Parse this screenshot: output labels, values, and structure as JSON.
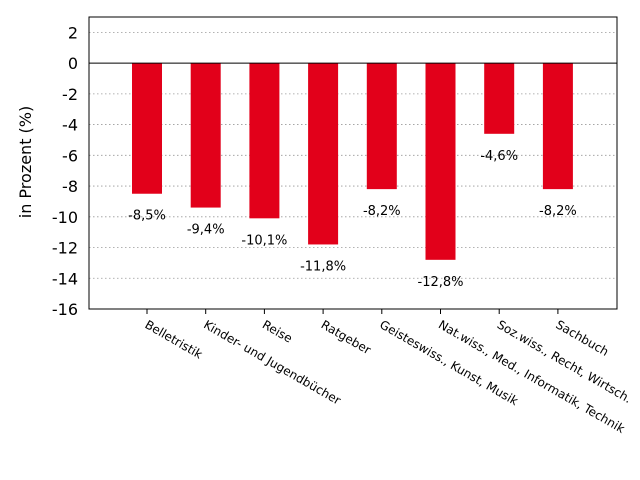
{
  "chart_data": {
    "type": "bar",
    "categories": [
      "Belletristik",
      "Kinder- und Jugendbücher",
      "Reise",
      "Ratgeber",
      "Geisteswiss., Kunst, Musik",
      "Nat.wiss., Med., Informatik, Technik",
      "Soz.wiss., Recht, Wirtsch.",
      "Sachbuch"
    ],
    "values": [
      -8.5,
      -9.4,
      -10.1,
      -11.8,
      -8.2,
      -12.8,
      -4.6,
      -8.2
    ],
    "data_labels": [
      "-8,5%",
      "-9,4%",
      "-10,1%",
      "-11,8%",
      "-8,2%",
      "-12,8%",
      "-4,6%",
      "-8,2%"
    ],
    "title": "",
    "xlabel": "",
    "ylabel": "in Prozent (%)",
    "ylim": [
      -16,
      3
    ],
    "yticks": [
      2,
      0,
      -2,
      -4,
      -6,
      -8,
      -10,
      -12,
      -14,
      -16
    ],
    "grid": "horizontal dotted",
    "bar_color": "#e2001a"
  }
}
